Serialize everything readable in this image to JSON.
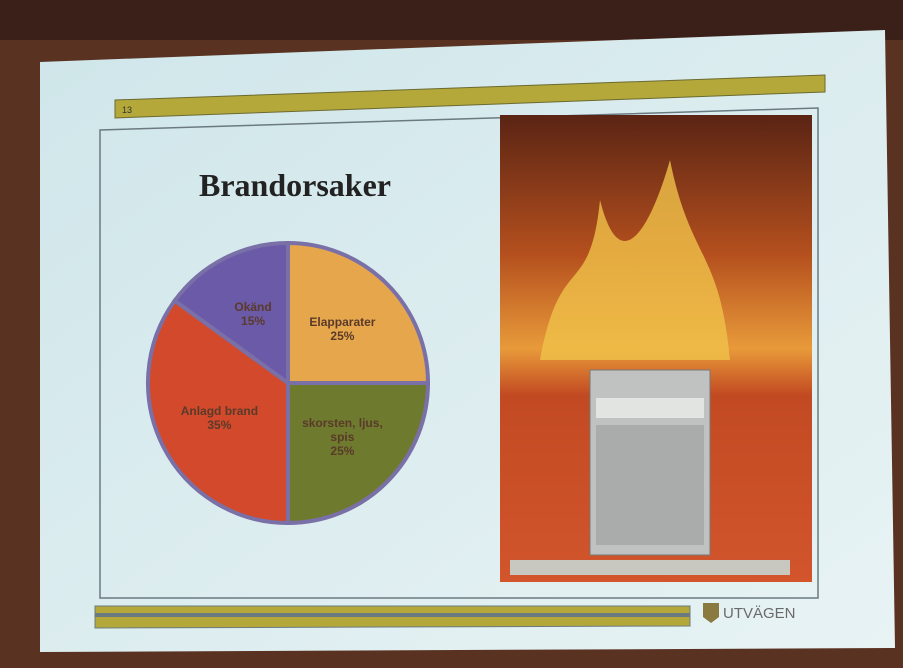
{
  "slide_number": "13",
  "logo": "UTVÄGEN",
  "chart_data": {
    "type": "pie",
    "title": "Brandorsaker",
    "categories": [
      "Elapparater",
      "skorsten, ljus, spis",
      "Anlagd brand",
      "Okänd"
    ],
    "values": [
      25,
      25,
      35,
      15
    ],
    "value_labels": [
      "25%",
      "25%",
      "35%",
      "15%"
    ],
    "colors": [
      "#e6a74c",
      "#6e7a2e",
      "#d2492b",
      "#6b5aa8"
    ]
  }
}
